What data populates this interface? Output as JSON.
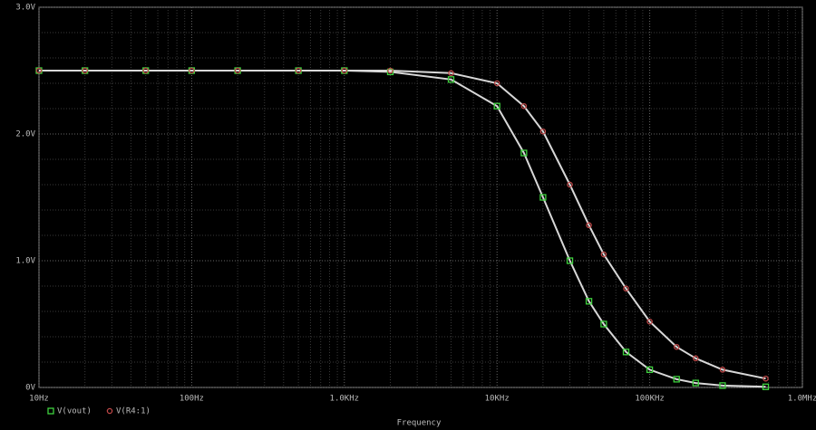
{
  "chart_data": {
    "type": "line",
    "x_label": "Frequency",
    "log_x": true,
    "grid": true,
    "x": [
      10,
      20,
      50,
      100,
      200,
      500,
      1000,
      2000,
      5000,
      10000,
      15000,
      20000,
      30000,
      40000,
      50000,
      70000,
      100000,
      150000,
      200000,
      300000,
      575000
    ],
    "series": [
      {
        "name": "V(vout)",
        "color": "#3fd23f",
        "marker": "square",
        "values": [
          2.5,
          2.5,
          2.5,
          2.5,
          2.5,
          2.5,
          2.5,
          2.49,
          2.43,
          2.22,
          1.85,
          1.5,
          1.0,
          0.68,
          0.5,
          0.28,
          0.14,
          0.065,
          0.035,
          0.015,
          0.005
        ]
      },
      {
        "name": "V(R4:1)",
        "color": "#c04848",
        "marker": "diamond",
        "values": [
          2.5,
          2.5,
          2.5,
          2.5,
          2.5,
          2.5,
          2.5,
          2.5,
          2.48,
          2.4,
          2.22,
          2.02,
          1.6,
          1.28,
          1.05,
          0.78,
          0.52,
          0.32,
          0.23,
          0.14,
          0.07
        ]
      }
    ],
    "line_color": "#d8d8d8",
    "xlim": [
      10,
      1000000
    ],
    "xticks": [
      {
        "value": 10,
        "label": "10Hz"
      },
      {
        "value": 100,
        "label": "100Hz"
      },
      {
        "value": 1000,
        "label": "1.0KHz"
      },
      {
        "value": 10000,
        "label": "10KHz"
      },
      {
        "value": 100000,
        "label": "100KHz"
      },
      {
        "value": 1000000,
        "label": "1.0MHz"
      }
    ],
    "ylim": [
      0,
      3
    ],
    "yticks": [
      {
        "value": 0,
        "label": "0V"
      },
      {
        "value": 1,
        "label": "1.0V"
      },
      {
        "value": 2,
        "label": "2.0V"
      },
      {
        "value": 3,
        "label": "3.0V"
      }
    ]
  }
}
